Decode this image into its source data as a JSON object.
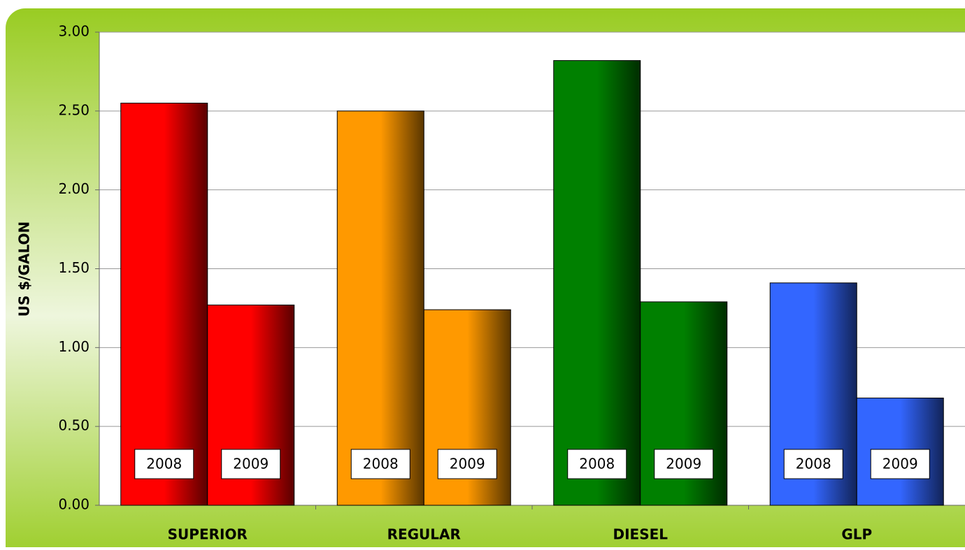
{
  "chart_data": {
    "type": "bar",
    "y_label": "US $/GALON",
    "categories": [
      "SUPERIOR",
      "REGULAR",
      "DIESEL",
      "GLP"
    ],
    "colors": [
      "#ff0000",
      "#ff9900",
      "#008000",
      "#3366ff"
    ],
    "series": [
      {
        "name": "2008",
        "values": [
          2.55,
          2.5,
          2.82,
          1.41
        ]
      },
      {
        "name": "2009",
        "values": [
          1.27,
          1.24,
          1.29,
          0.68
        ]
      }
    ],
    "ylim": [
      0,
      3
    ],
    "yticks": [
      {
        "value": 0,
        "label": "0.00"
      },
      {
        "value": 0.5,
        "label": "0.50"
      },
      {
        "value": 1,
        "label": "1.00"
      },
      {
        "value": 1.5,
        "label": "1.50"
      },
      {
        "value": 2,
        "label": "2.00"
      },
      {
        "value": 2.5,
        "label": "2.50"
      },
      {
        "value": 3,
        "label": "3.00"
      }
    ],
    "grid": true
  }
}
